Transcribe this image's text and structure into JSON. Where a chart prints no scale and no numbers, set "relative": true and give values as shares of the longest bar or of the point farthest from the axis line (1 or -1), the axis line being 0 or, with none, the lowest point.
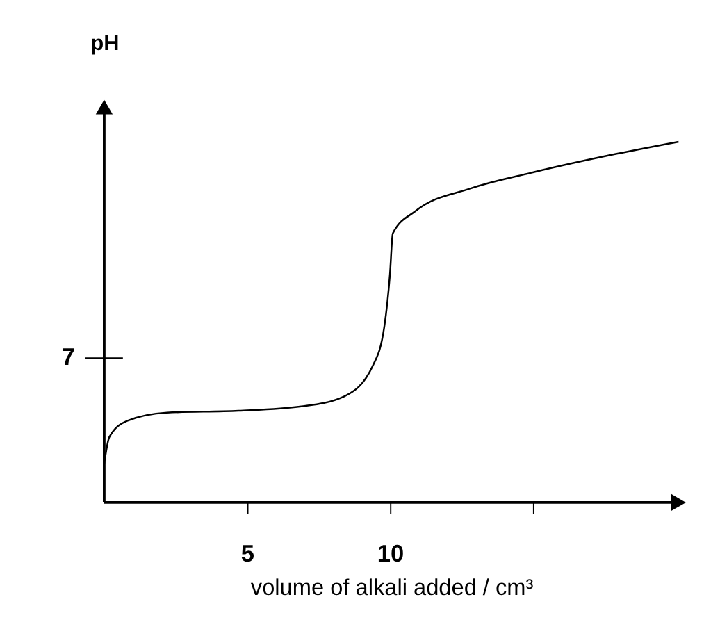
{
  "chart_data": {
    "type": "line",
    "ylabel": "pH",
    "xlabel": "volume of alkali added / cm³",
    "relative": true,
    "x": [
      0,
      0.18,
      0.8,
      2.2,
      4.7,
      6.9,
      8.4,
      9.4,
      9.8,
      10.0,
      10.1,
      10.9,
      12.8,
      15,
      17.9,
      20.1
    ],
    "values": [
      0.107,
      0.181,
      0.226,
      0.249,
      0.254,
      0.266,
      0.294,
      0.379,
      0.486,
      0.633,
      0.746,
      0.808,
      0.87,
      0.915,
      0.966,
      1
    ],
    "annotations": [
      "7"
    ],
    "color": "#000000",
    "xlim": [
      0,
      20.1
    ],
    "xticks": [
      5,
      10,
      {
        "value": 15,
        "label": null
      }
    ],
    "grid": false,
    "marker": "none",
    "line_style": "solid"
  }
}
